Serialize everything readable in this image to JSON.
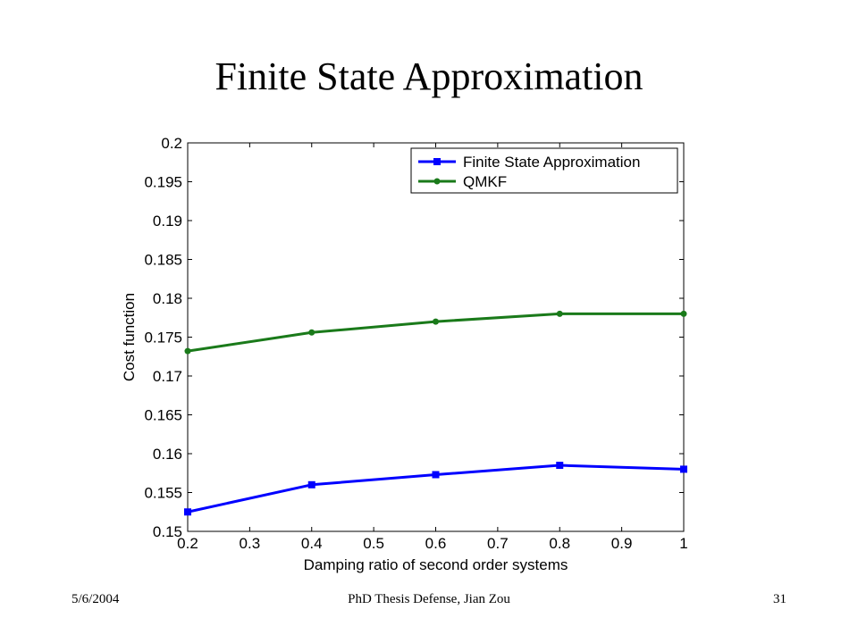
{
  "slide": {
    "title": "Finite State Approximation",
    "footer_date": "5/6/2004",
    "footer_center": "PhD Thesis Defense, Jian Zou",
    "page_number": "31"
  },
  "chart_data": {
    "type": "line",
    "xlabel": "Damping ratio of second order systems",
    "ylabel": "Cost function",
    "xlim": [
      0.2,
      1
    ],
    "ylim": [
      0.15,
      0.2
    ],
    "x_ticks": [
      0.2,
      0.3,
      0.4,
      0.5,
      0.6,
      0.7,
      0.8,
      0.9,
      1
    ],
    "x_tick_labels": [
      "0.2",
      "0.3",
      "0.4",
      "0.5",
      "0.6",
      "0.7",
      "0.8",
      "0.9",
      "1"
    ],
    "y_ticks": [
      0.15,
      0.155,
      0.16,
      0.165,
      0.17,
      0.175,
      0.18,
      0.185,
      0.19,
      0.195,
      0.2
    ],
    "y_tick_labels": [
      "0.15",
      "0.155",
      "0.16",
      "0.165",
      "0.17",
      "0.175",
      "0.18",
      "0.185",
      "0.19",
      "0.195",
      "0.2"
    ],
    "grid": false,
    "legend_position": "top-right",
    "x": [
      0.2,
      0.4,
      0.6,
      0.8,
      1.0
    ],
    "series": [
      {
        "name": "Finite State Approximation",
        "color": "#0000ff",
        "marker": "square",
        "values": [
          0.1525,
          0.156,
          0.1573,
          0.1585,
          0.158
        ]
      },
      {
        "name": "QMKF",
        "color": "#1a7a1a",
        "marker": "dot",
        "values": [
          0.1732,
          0.1756,
          0.177,
          0.178,
          0.178
        ]
      }
    ]
  }
}
